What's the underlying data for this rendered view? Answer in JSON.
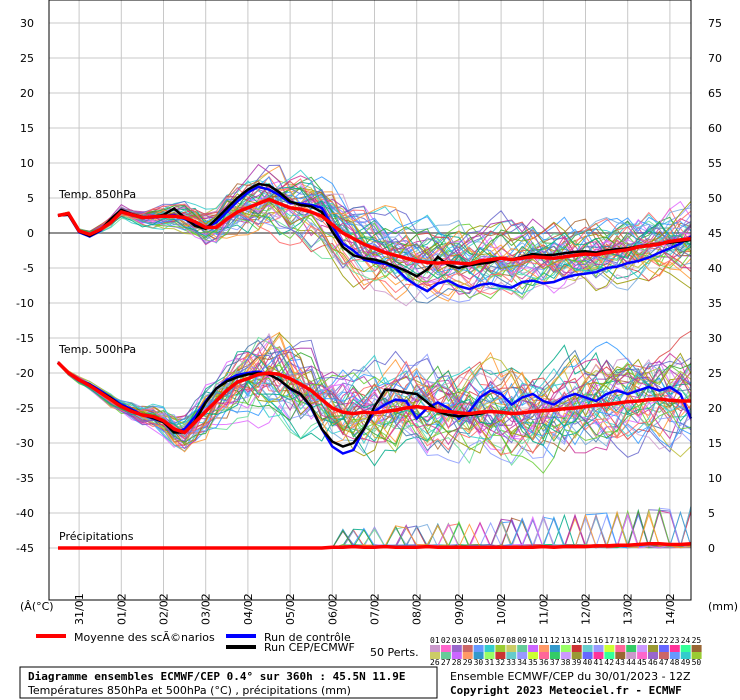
{
  "chart_data": {
    "type": "line",
    "title": "Diagramme ensembles ECMWF/CEP 0.4° sur 360h : 45.5N 11.9E",
    "subtitle": "Températures 850hPa et 500hPa (°C) , précipitations (mm)",
    "run_info": "Ensemble ECMWF/CEP du 30/01/2023 - 12Z",
    "copyright": "Copyright 2023 Meteociel.fr - ECMWF",
    "left_axis": {
      "unit_label": "(°C)",
      "unit_prefix": "(Â",
      "ticks": [
        "30",
        "25",
        "20",
        "15",
        "10",
        "5",
        "0",
        "-5",
        "-10",
        "-15",
        "-20",
        "-25",
        "-30",
        "-35",
        "-40",
        "-45"
      ],
      "ylim": [
        -45,
        30
      ]
    },
    "right_axis": {
      "unit_label": "(mm)",
      "ticks": [
        "75",
        "70",
        "65",
        "60",
        "55",
        "50",
        "45",
        "40",
        "35",
        "30",
        "25",
        "20",
        "15",
        "10",
        "5",
        "0"
      ],
      "ylim": [
        0,
        75
      ]
    },
    "x_labels": [
      "31/01",
      "01/02",
      "02/02",
      "03/02",
      "04/02",
      "05/02",
      "06/02",
      "07/02",
      "08/02",
      "09/02",
      "10/02",
      "11/02",
      "12/02",
      "13/02",
      "14/02"
    ],
    "panel_labels": [
      "Temp. 850hPa",
      "Temp. 500hPa",
      "Précipitations"
    ],
    "legend": {
      "mean": "Moyenne des scÃ©narios",
      "control": "Run de contrôle",
      "ecmwf": "Run CEP/ECMWF",
      "perts_label": "50 Perts.",
      "perts_top": [
        "01",
        "02",
        "03",
        "04",
        "05",
        "06",
        "07",
        "08",
        "09",
        "10",
        "11",
        "12",
        "13",
        "14",
        "15",
        "16",
        "17",
        "18",
        "19",
        "20",
        "21",
        "22",
        "23",
        "24",
        "25"
      ],
      "perts_bottom": [
        "26",
        "27",
        "28",
        "29",
        "30",
        "31",
        "32",
        "33",
        "34",
        "35",
        "36",
        "37",
        "38",
        "39",
        "40",
        "41",
        "42",
        "43",
        "44",
        "45",
        "46",
        "47",
        "48",
        "49",
        "50"
      ]
    },
    "colors": {
      "mean": "#ff0000",
      "control": "#0000ff",
      "ecmwf": "#000000",
      "grid": "#c8c8c8",
      "zero_line": "#909090"
    },
    "series_850_x_hours": [
      0,
      6,
      12,
      18,
      24,
      30,
      36,
      42,
      48,
      54,
      60,
      66,
      72,
      78,
      84,
      90,
      96,
      102,
      108,
      114,
      120,
      126,
      132,
      138,
      144,
      150,
      156,
      162,
      168,
      174,
      180,
      186,
      192,
      198,
      204,
      210,
      216,
      222,
      228,
      234,
      240,
      246,
      252,
      258,
      264,
      270,
      276,
      282,
      288,
      294,
      300,
      306,
      312,
      318,
      324,
      330,
      336,
      342,
      348,
      354,
      360
    ],
    "series": [
      {
        "name": "Moyenne des scÃ©narios",
        "level": "850hPa",
        "values": [
          2.5,
          2.8,
          0.3,
          -0.2,
          0.5,
          1.5,
          3.0,
          2.6,
          2.2,
          2.3,
          2.4,
          2.4,
          2.2,
          1.6,
          0.8,
          0.8,
          2.0,
          3.0,
          3.6,
          4.2,
          4.8,
          4.2,
          3.6,
          3.4,
          3.0,
          2.4,
          1.2,
          0,
          -0.8,
          -1.6,
          -2.2,
          -2.8,
          -3.2,
          -3.6,
          -4.0,
          -4.2,
          -4.3,
          -4.2,
          -4.3,
          -4.4,
          -4.0,
          -3.8,
          -3.6,
          -3.8,
          -3.6,
          -3.4,
          -3.5,
          -3.6,
          -3.4,
          -3.2,
          -3.0,
          -3.1,
          -2.8,
          -2.6,
          -2.4,
          -2.0,
          -1.8,
          -1.6,
          -1.2,
          -1.0,
          -0.8
        ]
      },
      {
        "name": "Run de contrôle",
        "level": "850hPa",
        "values": [
          2.5,
          2.6,
          0.1,
          -0.5,
          0.3,
          1.8,
          3.2,
          2.6,
          2.3,
          2.2,
          2.4,
          2.6,
          2.0,
          1.2,
          0.8,
          1.5,
          3.0,
          4.5,
          5.8,
          6.6,
          6.2,
          5.4,
          4.3,
          4.2,
          4.0,
          3.6,
          1.0,
          -1.5,
          -2.5,
          -3.8,
          -4.2,
          -4.4,
          -5.0,
          -6.5,
          -7.5,
          -8.3,
          -7.2,
          -6.8,
          -7.6,
          -8.0,
          -7.4,
          -7.2,
          -7.6,
          -7.8,
          -7.0,
          -6.8,
          -7.2,
          -7.0,
          -6.4,
          -6.0,
          -5.8,
          -5.6,
          -5.0,
          -4.8,
          -4.3,
          -4.0,
          -3.5,
          -2.8,
          -2.2,
          -1.5,
          -0.5
        ]
      },
      {
        "name": "Run CEP/ECMWF",
        "level": "850hPa",
        "values": [
          2.5,
          2.6,
          0.2,
          -0.4,
          0.4,
          2.0,
          3.3,
          2.7,
          2.3,
          2.3,
          2.6,
          3.5,
          2.2,
          1.0,
          0.6,
          2.0,
          3.5,
          5.0,
          6.2,
          7.0,
          6.8,
          5.8,
          4.5,
          4.0,
          3.8,
          3.0,
          0.2,
          -2.0,
          -3.2,
          -3.6,
          -3.8,
          -4.2,
          -4.8,
          -5.4,
          -6.2,
          -5.2,
          -3.4,
          -4.6,
          -5.0,
          -4.6,
          -4.4,
          -4.2,
          -3.6,
          -3.8,
          -3.4,
          -3.0,
          -3.2,
          -3.1,
          -2.9,
          -2.7,
          -2.6,
          -2.8,
          -2.5,
          -2.3,
          -2.2,
          -1.9,
          -1.7,
          -1.5,
          -1.4,
          -1.2,
          -1.0
        ]
      },
      {
        "name": "Moyenne des scÃ©narios",
        "level": "500hPa",
        "values": [
          -18.5,
          -20.0,
          -21.0,
          -21.8,
          -22.8,
          -23.8,
          -24.8,
          -25.5,
          -26.0,
          -26.2,
          -26.8,
          -28.0,
          -28.5,
          -27.0,
          -25.5,
          -24.0,
          -22.5,
          -21.3,
          -20.8,
          -20.2,
          -20.0,
          -20.2,
          -20.8,
          -21.6,
          -22.5,
          -23.8,
          -25.0,
          -25.6,
          -25.8,
          -25.6,
          -25.7,
          -25.5,
          -25.3,
          -25.0,
          -24.8,
          -25.0,
          -25.4,
          -25.5,
          -25.7,
          -25.8,
          -25.6,
          -25.5,
          -25.6,
          -25.8,
          -25.7,
          -25.5,
          -25.4,
          -25.3,
          -25.1,
          -25.0,
          -24.8,
          -24.6,
          -24.5,
          -24.3,
          -24.1,
          -24.0,
          -23.8,
          -23.7,
          -23.9,
          -24.0,
          -24.0
        ]
      },
      {
        "name": "Run de contrôle",
        "level": "500hPa",
        "values": [
          -18.5,
          -20.0,
          -21.0,
          -21.6,
          -22.5,
          -23.5,
          -24.5,
          -25.2,
          -26.0,
          -26.5,
          -27.0,
          -28.5,
          -28.0,
          -26.2,
          -24.0,
          -22.2,
          -21.0,
          -20.3,
          -20.0,
          -19.8,
          -20.2,
          -21.0,
          -22.3,
          -23.0,
          -25.0,
          -28.0,
          -30.5,
          -31.5,
          -31.0,
          -28.0,
          -25.5,
          -24.5,
          -23.8,
          -24.0,
          -26.5,
          -25.0,
          -24.2,
          -25.0,
          -26.5,
          -25.5,
          -23.5,
          -22.5,
          -23.0,
          -24.5,
          -23.5,
          -23.0,
          -24.0,
          -24.5,
          -23.5,
          -23.0,
          -23.5,
          -24.0,
          -23.0,
          -22.5,
          -23.0,
          -22.5,
          -22.0,
          -22.5,
          -22.0,
          -23.0,
          -26.5
        ]
      },
      {
        "name": "Run CEP/ECMWF",
        "level": "500hPa",
        "values": [
          -18.5,
          -20.0,
          -21.0,
          -21.7,
          -22.7,
          -23.6,
          -24.7,
          -25.4,
          -26.0,
          -26.4,
          -27.0,
          -28.5,
          -28.5,
          -26.8,
          -24.2,
          -22.2,
          -21.2,
          -20.6,
          -20.2,
          -20.0,
          -20.2,
          -21.0,
          -22.2,
          -23.0,
          -24.8,
          -28.0,
          -29.8,
          -30.5,
          -30.0,
          -28.0,
          -24.8,
          -22.4,
          -22.5,
          -22.8,
          -23.0,
          -24.2,
          -25.5,
          -26.0,
          -26.2,
          -26.0,
          -25.8,
          -25.5,
          -25.6,
          -25.8,
          -25.7,
          -25.5,
          -25.4,
          -25.3,
          -25.1,
          -25.0,
          -24.8,
          -24.6,
          -24.5,
          -24.3,
          -24.1,
          -24.0,
          -23.8,
          -23.7,
          -23.9,
          -24.0,
          -24.0
        ]
      },
      {
        "name": "Moyenne des scÃ©narios",
        "level": "precip_mm",
        "values": [
          0,
          0,
          0,
          0,
          0,
          0,
          0,
          0,
          0,
          0,
          0,
          0,
          0,
          0,
          0,
          0,
          0,
          0,
          0,
          0,
          0,
          0,
          0,
          0,
          0,
          0,
          0.1,
          0.1,
          0.2,
          0.1,
          0.1,
          0.2,
          0.1,
          0.1,
          0.1,
          0.2,
          0.1,
          0.1,
          0.1,
          0.1,
          0.1,
          0.1,
          0.1,
          0.1,
          0.1,
          0.1,
          0.2,
          0.1,
          0.2,
          0.2,
          0.2,
          0.3,
          0.3,
          0.4,
          0.4,
          0.5,
          0.6,
          0.6,
          0.5,
          0.5,
          0.6
        ]
      }
    ]
  }
}
